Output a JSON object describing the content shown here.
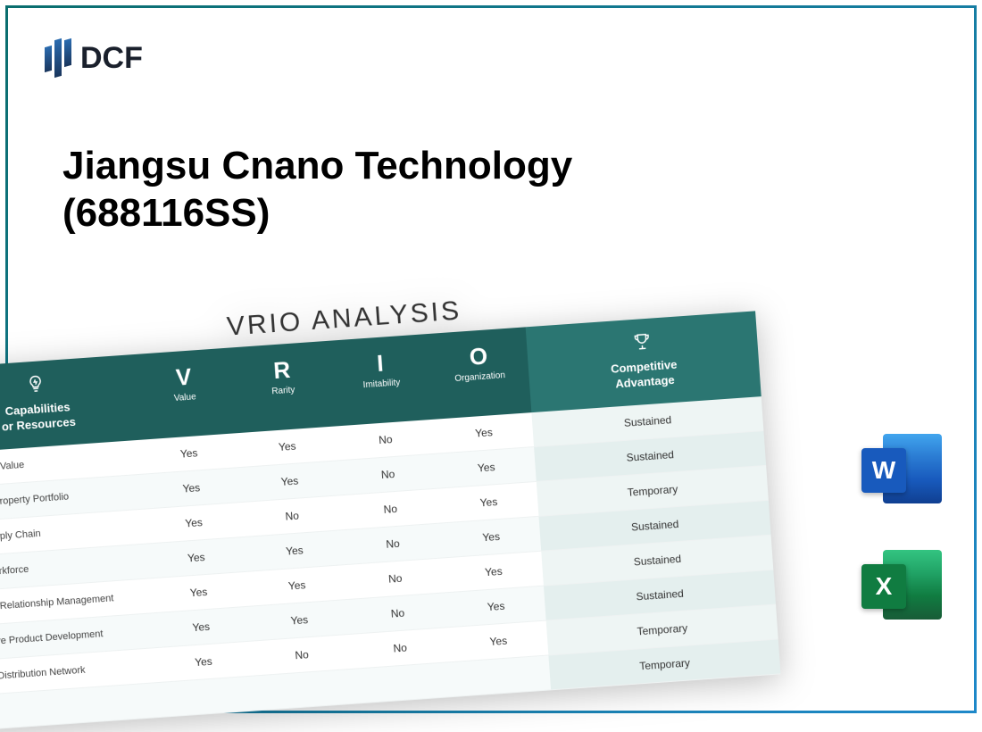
{
  "logo_text": "DCF",
  "title_line1": "Jiangsu Cnano Technology",
  "title_line2": "(688116SS)",
  "vrio": {
    "heading": "VRIO ANALYSIS",
    "columns": {
      "cap": {
        "label1": "Capabilities",
        "label2": "or Resources"
      },
      "v": {
        "letter": "V",
        "sub": "Value"
      },
      "r": {
        "letter": "R",
        "sub": "Rarity"
      },
      "i": {
        "letter": "I",
        "sub": "Imitability"
      },
      "o": {
        "letter": "O",
        "sub": "Organization"
      },
      "comp": {
        "label1": "Competitive",
        "label2": "Advantage"
      }
    },
    "rows": [
      {
        "cap": "ong Brand Value",
        "v": "Yes",
        "r": "Yes",
        "i": "No",
        "o": "Yes",
        "comp": "Sustained"
      },
      {
        "cap": "ellectual Property Portfolio",
        "v": "Yes",
        "r": "Yes",
        "i": "No",
        "o": "Yes",
        "comp": "Sustained"
      },
      {
        "cap": "icient Supply Chain",
        "v": "Yes",
        "r": "No",
        "i": "No",
        "o": "Yes",
        "comp": "Temporary"
      },
      {
        "cap": "killed Workforce",
        "v": "Yes",
        "r": "Yes",
        "i": "No",
        "o": "Yes",
        "comp": "Sustained"
      },
      {
        "cap": "ustomer Relationship Management",
        "v": "Yes",
        "r": "Yes",
        "i": "No",
        "o": "Yes",
        "comp": "Sustained"
      },
      {
        "cap": "nnovative Product Development",
        "v": "Yes",
        "r": "Yes",
        "i": "No",
        "o": "Yes",
        "comp": "Sustained"
      },
      {
        "cap": "Global Distribution Network",
        "v": "Yes",
        "r": "No",
        "i": "No",
        "o": "Yes",
        "comp": "Temporary"
      },
      {
        "cap": "",
        "v": "",
        "r": "",
        "i": "",
        "o": "",
        "comp": "Temporary"
      }
    ]
  },
  "file_icons": {
    "word": "W",
    "excel": "X"
  },
  "colors": {
    "header_bg": "#1f5f5c",
    "header_comp_bg": "#2b7672",
    "frame_start": "#0a6e6e",
    "frame_end": "#1e88c9"
  }
}
